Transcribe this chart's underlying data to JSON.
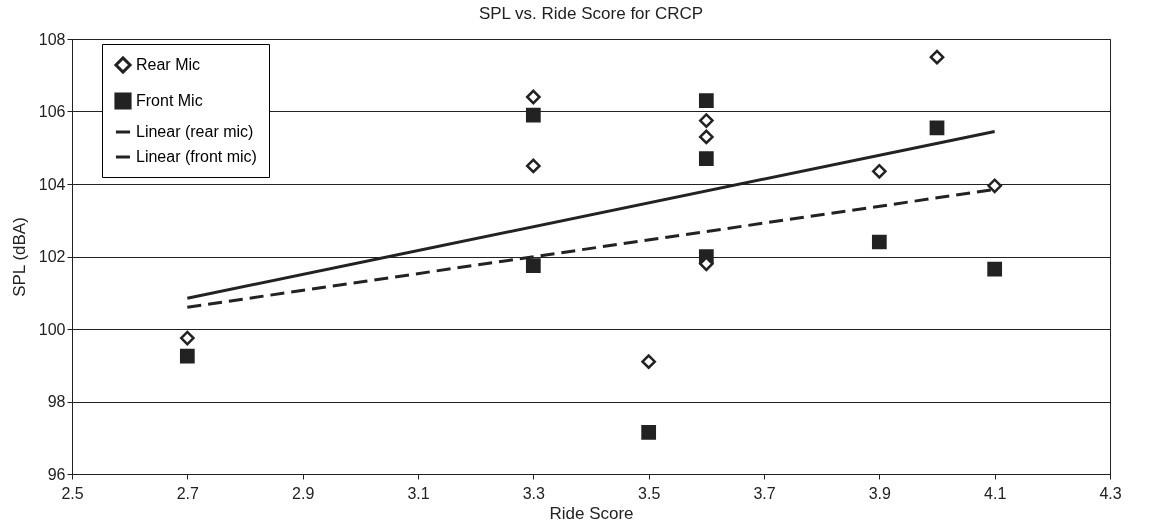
{
  "chart_data": {
    "type": "scatter",
    "title": "SPL vs.  Ride Score for CRCP",
    "xlabel": "Ride Score",
    "ylabel": "SPL (dBA)",
    "xlim": [
      2.5,
      4.3
    ],
    "xticks": [
      2.5,
      2.7,
      2.9,
      3.1,
      3.3,
      3.5,
      3.7,
      3.9,
      4.1,
      4.3
    ],
    "ylim": [
      96,
      108
    ],
    "yticks": [
      96,
      98,
      100,
      102,
      104,
      106,
      108
    ],
    "grid": "y",
    "legend": "top left",
    "series": [
      {
        "name": "Rear Mic",
        "type": "scatter",
        "marker": "diamond",
        "color": "#222222",
        "x": [
          2.7,
          3.3,
          3.3,
          3.5,
          3.6,
          3.6,
          3.6,
          3.9,
          4.0,
          4.1
        ],
        "values": [
          99.75,
          106.4,
          104.5,
          99.1,
          105.75,
          105.3,
          101.8,
          104.35,
          107.5,
          103.95
        ]
      },
      {
        "name": "Front Mic",
        "type": "scatter",
        "marker": "square",
        "color": "#222222",
        "x": [
          2.7,
          3.3,
          3.3,
          3.5,
          3.6,
          3.6,
          3.6,
          3.9,
          4.0,
          4.1
        ],
        "values": [
          99.25,
          105.9,
          101.75,
          97.15,
          106.3,
          104.7,
          102.0,
          102.4,
          105.55,
          101.65
        ]
      },
      {
        "name": "Linear (rear mic)",
        "type": "line",
        "line_style": "solid",
        "color": "#222222",
        "x": [
          2.7,
          4.1
        ],
        "values": [
          100.85,
          105.45
        ]
      },
      {
        "name": "Linear (front mic)",
        "type": "line",
        "line_style": "dashed",
        "color": "#222222",
        "x": [
          2.7,
          4.1
        ],
        "values": [
          100.6,
          103.85
        ]
      }
    ]
  }
}
